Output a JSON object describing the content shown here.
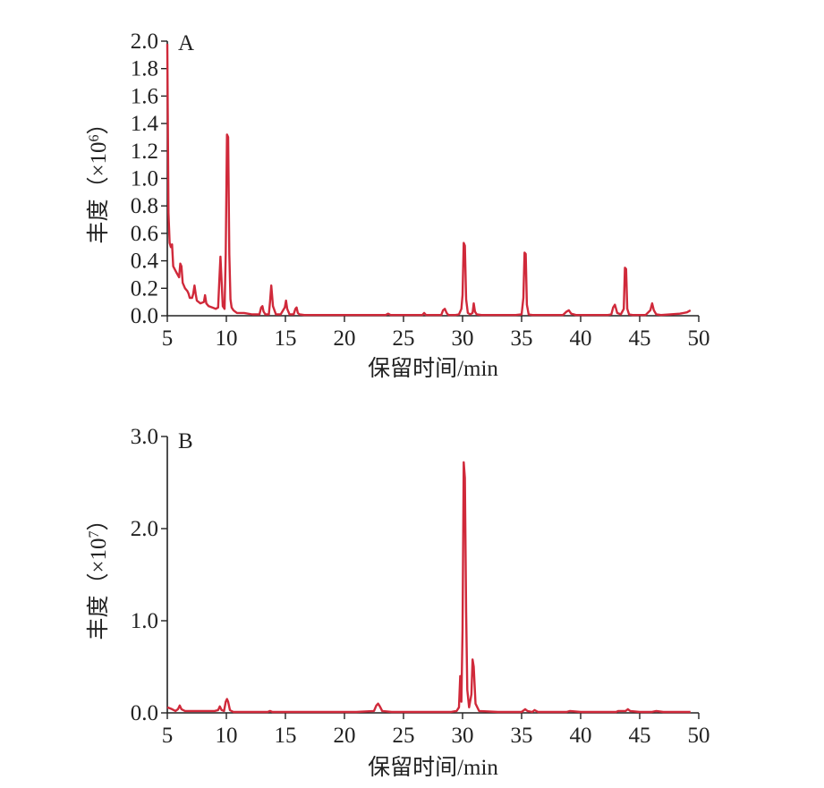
{
  "chart_data": [
    {
      "panel": "A",
      "type": "line",
      "ylabel": "丰度（×10⁶）",
      "ylabel_base": "丰度（×10",
      "ylabel_exp": "6",
      "ylabel_close": "）",
      "xlabel": "保留时间/min",
      "xlim": [
        5,
        50
      ],
      "ylim": [
        0,
        2.0
      ],
      "xticks": [
        5,
        10,
        15,
        20,
        25,
        30,
        35,
        40,
        45,
        50
      ],
      "xtick_labels": [
        "5",
        "10",
        "15",
        "20",
        "25",
        "30",
        "35",
        "40",
        "45",
        "50"
      ],
      "yticks": [
        0,
        0.2,
        0.4,
        0.6,
        0.8,
        1.0,
        1.2,
        1.4,
        1.6,
        1.8,
        2.0
      ],
      "ytick_labels": [
        "0.0",
        "0.2",
        "0.4",
        "0.6",
        "0.8",
        "1.0",
        "1.2",
        "1.4",
        "1.6",
        "1.8",
        "2.0"
      ],
      "color": "#d0293a",
      "series": [
        {
          "x": [
            5.0,
            5.1,
            5.2,
            5.3,
            5.4,
            5.5,
            5.8,
            6.0,
            6.1,
            6.2,
            6.3,
            6.5,
            6.7,
            6.8,
            6.9,
            7.1,
            7.2,
            7.3,
            7.4,
            7.5,
            7.8,
            8.1,
            8.2,
            8.3,
            8.5,
            8.8,
            9.1,
            9.3,
            9.4,
            9.5,
            9.6,
            9.7,
            9.85,
            9.95,
            10.05,
            10.15,
            10.25,
            10.35,
            10.45,
            10.6,
            10.9,
            11.5,
            12.2,
            12.8,
            12.95,
            13.05,
            13.15,
            13.3,
            13.6,
            13.7,
            13.8,
            13.95,
            14.2,
            14.6,
            14.95,
            15.05,
            15.15,
            15.35,
            15.7,
            15.85,
            15.95,
            16.05,
            16.2,
            16.6,
            18.0,
            20.0,
            22.0,
            23.5,
            23.7,
            23.9,
            25.0,
            26.6,
            26.75,
            26.9,
            27.5,
            28.2,
            28.35,
            28.5,
            28.65,
            28.8,
            29.4,
            29.7,
            29.9,
            30.0,
            30.1,
            30.2,
            30.3,
            30.45,
            30.65,
            30.85,
            30.95,
            31.05,
            31.2,
            31.6,
            33.0,
            34.5,
            35.0,
            35.15,
            35.25,
            35.35,
            35.45,
            35.6,
            35.9,
            37.0,
            38.5,
            38.8,
            39.0,
            39.2,
            39.6,
            41.0,
            42.3,
            42.6,
            42.75,
            42.9,
            43.1,
            43.4,
            43.65,
            43.75,
            43.85,
            43.95,
            44.1,
            44.4,
            45.5,
            45.9,
            46.05,
            46.2,
            46.4,
            46.8,
            47.6,
            48.4,
            49.0,
            49.3
          ],
          "y": [
            1.98,
            0.75,
            0.53,
            0.5,
            0.52,
            0.36,
            0.31,
            0.28,
            0.38,
            0.36,
            0.24,
            0.2,
            0.18,
            0.16,
            0.13,
            0.13,
            0.16,
            0.22,
            0.16,
            0.11,
            0.09,
            0.1,
            0.15,
            0.09,
            0.07,
            0.06,
            0.05,
            0.06,
            0.25,
            0.43,
            0.25,
            0.07,
            0.05,
            0.45,
            1.32,
            1.3,
            0.45,
            0.12,
            0.06,
            0.04,
            0.02,
            0.02,
            0.01,
            0.01,
            0.06,
            0.07,
            0.03,
            0.01,
            0.01,
            0.1,
            0.22,
            0.07,
            0.01,
            0.01,
            0.06,
            0.11,
            0.05,
            0.01,
            0.01,
            0.05,
            0.06,
            0.02,
            0.01,
            0.005,
            0.005,
            0.005,
            0.005,
            0.005,
            0.015,
            0.005,
            0.005,
            0.005,
            0.02,
            0.005,
            0.005,
            0.005,
            0.04,
            0.05,
            0.02,
            0.005,
            0.005,
            0.01,
            0.05,
            0.15,
            0.53,
            0.51,
            0.12,
            0.02,
            0.01,
            0.02,
            0.09,
            0.03,
            0.01,
            0.005,
            0.005,
            0.005,
            0.01,
            0.13,
            0.46,
            0.45,
            0.08,
            0.01,
            0.005,
            0.005,
            0.005,
            0.03,
            0.04,
            0.015,
            0.005,
            0.005,
            0.005,
            0.01,
            0.06,
            0.08,
            0.02,
            0.01,
            0.05,
            0.35,
            0.34,
            0.05,
            0.01,
            0.005,
            0.005,
            0.04,
            0.09,
            0.04,
            0.01,
            0.005,
            0.01,
            0.015,
            0.025,
            0.04
          ]
        }
      ]
    },
    {
      "panel": "B",
      "type": "line",
      "ylabel": "丰度（×10⁷）",
      "ylabel_base": "丰度（×10",
      "ylabel_exp": "7",
      "ylabel_close": "）",
      "xlabel": "保留时间/min",
      "xlim": [
        5,
        50
      ],
      "ylim": [
        0,
        3.0
      ],
      "xticks": [
        5,
        10,
        15,
        20,
        25,
        30,
        35,
        40,
        45,
        50
      ],
      "xtick_labels": [
        "5",
        "10",
        "15",
        "20",
        "25",
        "30",
        "35",
        "40",
        "45",
        "50"
      ],
      "yticks": [
        0,
        1.0,
        2.0,
        3.0
      ],
      "ytick_labels": [
        "0.0",
        "1.0",
        "2.0",
        "3.0"
      ],
      "color": "#d0293a",
      "series": [
        {
          "x": [
            5.0,
            5.4,
            5.7,
            5.9,
            6.05,
            6.2,
            6.5,
            7.0,
            8.0,
            9.0,
            9.3,
            9.45,
            9.6,
            9.8,
            9.95,
            10.05,
            10.15,
            10.3,
            10.6,
            12.0,
            13.5,
            13.7,
            13.9,
            15.0,
            17.0,
            19.0,
            21.0,
            22.5,
            22.7,
            22.85,
            23.0,
            23.2,
            24.0,
            26.0,
            28.0,
            29.0,
            29.5,
            29.7,
            29.8,
            29.9,
            30.0,
            30.1,
            30.2,
            30.3,
            30.4,
            30.55,
            30.75,
            30.85,
            30.95,
            31.1,
            31.4,
            33.0,
            35.0,
            35.3,
            35.5,
            35.9,
            36.1,
            36.4,
            38.0,
            38.8,
            39.1,
            40.0,
            42.0,
            43.0,
            43.2,
            43.8,
            44.0,
            44.2,
            45.0,
            46.0,
            46.4,
            47.0,
            48.5,
            49.3
          ],
          "y": [
            0.06,
            0.04,
            0.02,
            0.04,
            0.08,
            0.04,
            0.02,
            0.02,
            0.02,
            0.02,
            0.03,
            0.07,
            0.03,
            0.02,
            0.12,
            0.15,
            0.12,
            0.03,
            0.01,
            0.01,
            0.01,
            0.02,
            0.01,
            0.01,
            0.01,
            0.01,
            0.01,
            0.02,
            0.08,
            0.1,
            0.07,
            0.02,
            0.01,
            0.01,
            0.01,
            0.01,
            0.02,
            0.06,
            0.4,
            0.12,
            0.9,
            2.72,
            2.55,
            1.1,
            0.25,
            0.06,
            0.2,
            0.58,
            0.5,
            0.1,
            0.02,
            0.01,
            0.01,
            0.04,
            0.02,
            0.01,
            0.03,
            0.01,
            0.01,
            0.01,
            0.02,
            0.01,
            0.01,
            0.01,
            0.02,
            0.02,
            0.04,
            0.02,
            0.01,
            0.01,
            0.02,
            0.01,
            0.01,
            0.01
          ]
        }
      ]
    }
  ]
}
